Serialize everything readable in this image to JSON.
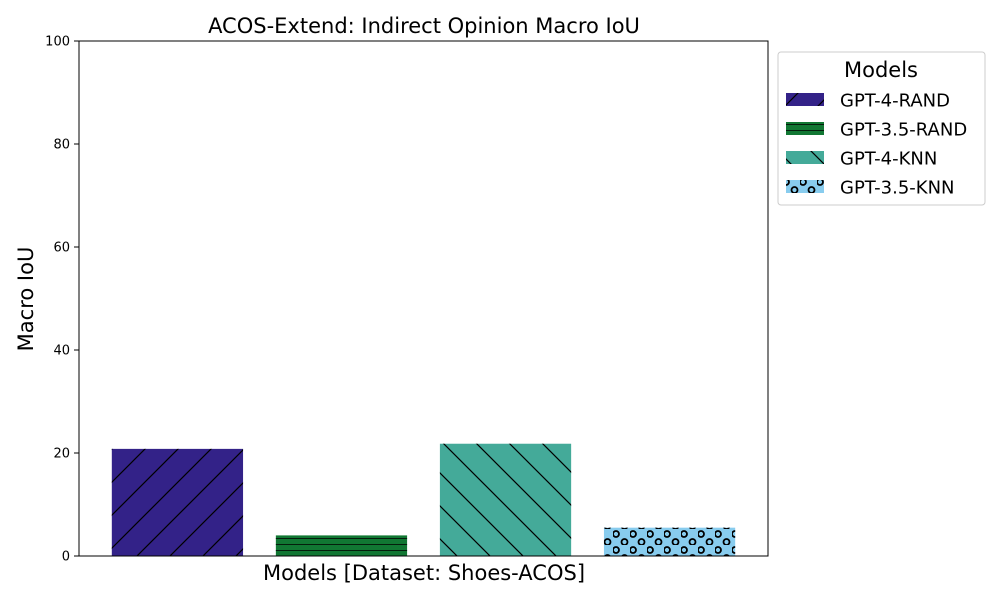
{
  "chart_data": {
    "type": "bar",
    "title": "ACOS-Extend: Indirect Opinion Macro IoU",
    "xlabel": "Models [Dataset: Shoes-ACOS]",
    "ylabel": "Macro IoU",
    "ylim": [
      0,
      100
    ],
    "yticks": [
      0,
      20,
      40,
      60,
      80,
      100
    ],
    "grid": false,
    "legend": {
      "title": "Models",
      "position": "outside-top-right"
    },
    "series": [
      {
        "name": "GPT-4-RAND",
        "value": 20.8,
        "color": "#332288",
        "hatch": "forward-diagonal"
      },
      {
        "name": "GPT-3.5-RAND",
        "value": 4.0,
        "color": "#117733",
        "hatch": "horizontal"
      },
      {
        "name": "GPT-4-KNN",
        "value": 21.8,
        "color": "#44AA99",
        "hatch": "back-diagonal"
      },
      {
        "name": "GPT-3.5-KNN",
        "value": 5.5,
        "color": "#88CCEE",
        "hatch": "circles"
      }
    ]
  }
}
